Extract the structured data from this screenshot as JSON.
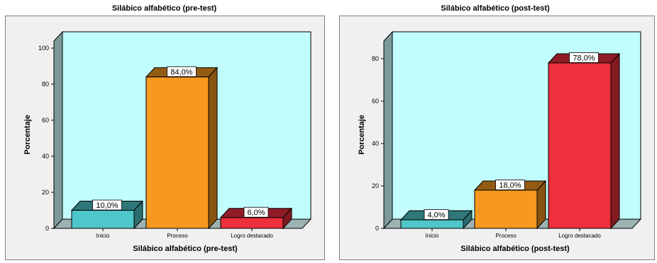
{
  "chart_data": [
    {
      "type": "bar",
      "title": "Silábico alfabético (pre-test)",
      "xlabel": "Silábico alfabético (pre-test)",
      "ylabel": "Porcentaje",
      "categories": [
        "Inicio",
        "Proceso",
        "Logro destacado"
      ],
      "values": [
        10,
        84,
        6
      ],
      "value_labels": [
        "10,0%",
        "84,0%",
        "6,0%"
      ],
      "ylim": [
        0,
        100
      ],
      "yticks": [
        "0",
        "20",
        "40",
        "60",
        "80",
        "100"
      ],
      "colors": [
        "#4fc6c9",
        "#f7991e",
        "#ee2f3c"
      ],
      "background": "#c2fdfd",
      "grid": false
    },
    {
      "type": "bar",
      "title": "Silábico alfabético (post-test)",
      "xlabel": "Silábico alfabético (post-test)",
      "ylabel": "Porcentaje",
      "categories": [
        "Inicio",
        "Proceso",
        "Logro destacado"
      ],
      "values": [
        4,
        18,
        78
      ],
      "value_labels": [
        "4,0%",
        "18,0%",
        "78,0%"
      ],
      "ylim": [
        0,
        85
      ],
      "yticks": [
        "0",
        "20",
        "40",
        "60",
        "80"
      ],
      "colors": [
        "#4fc6c9",
        "#f7991e",
        "#ee2f3c"
      ],
      "background": "#c2fdfd",
      "grid": false
    }
  ]
}
